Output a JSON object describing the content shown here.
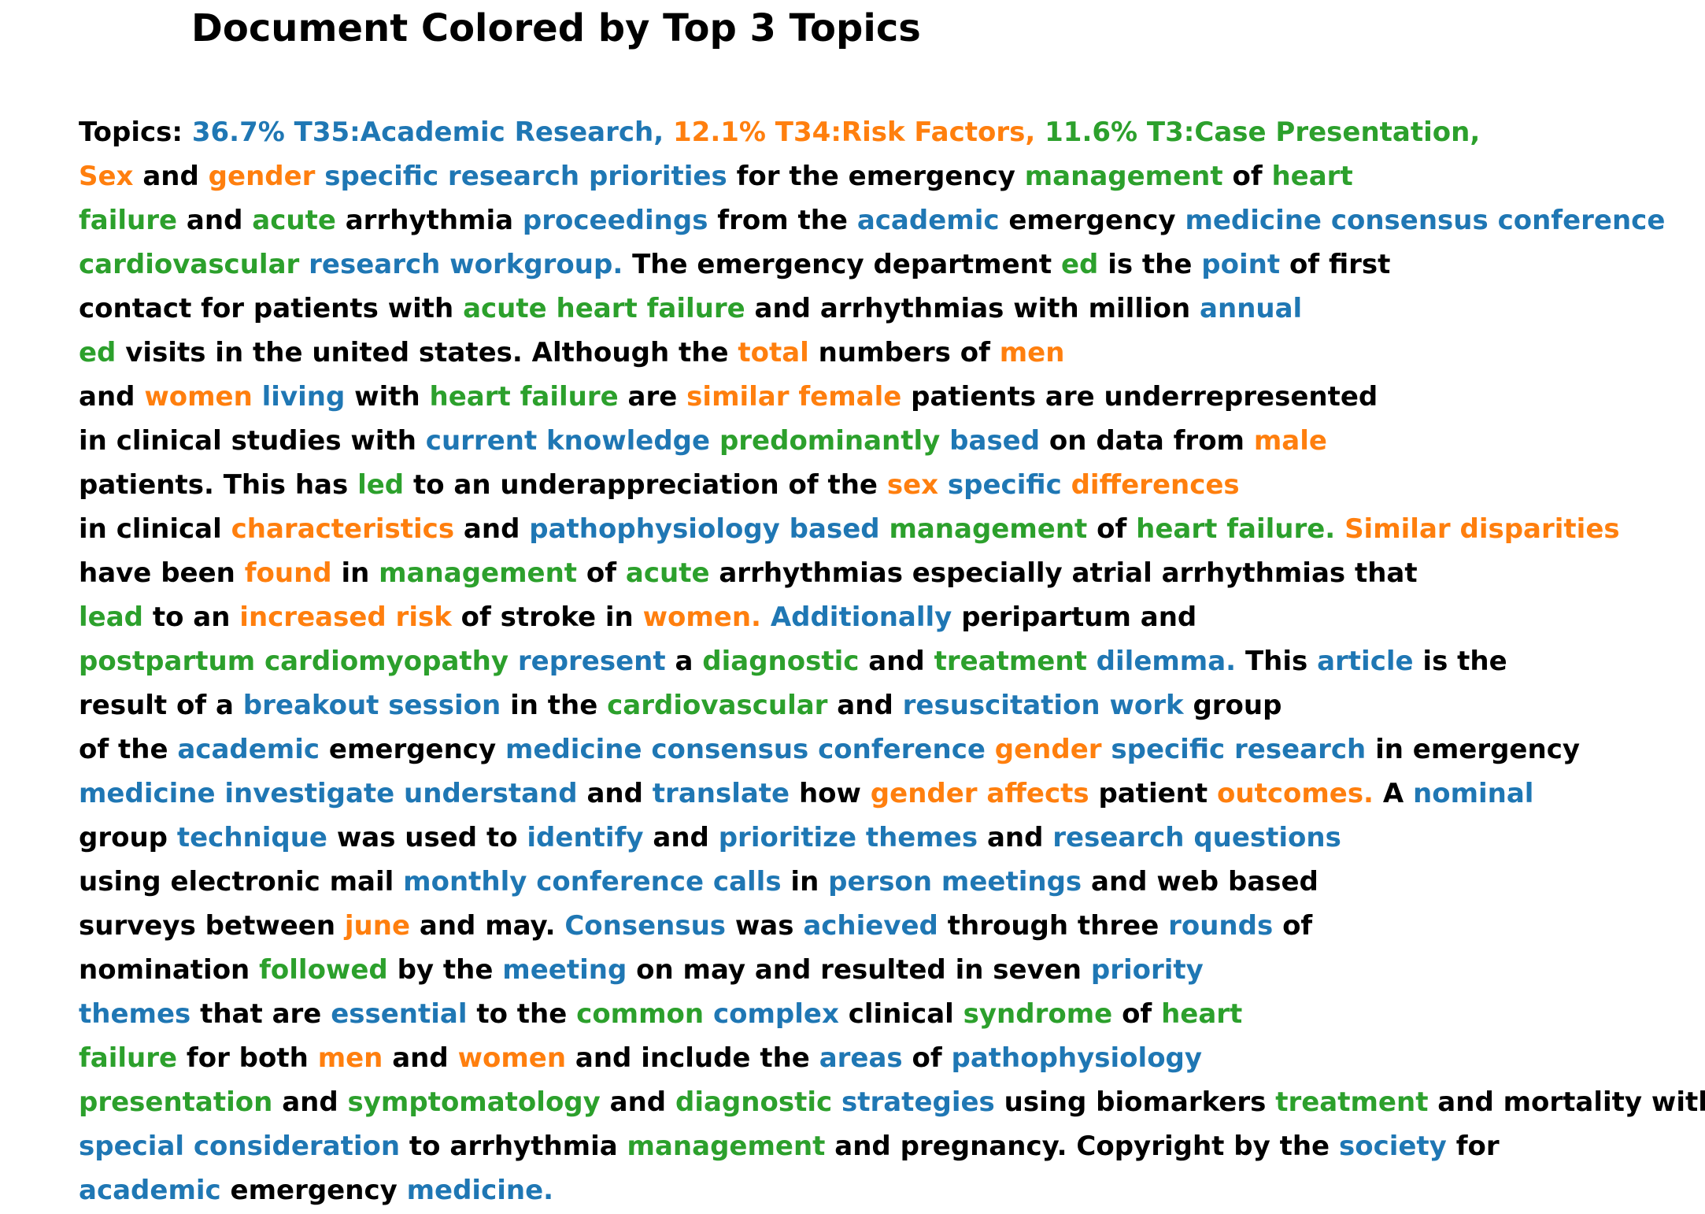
{
  "title": "Document Colored by Top 3 Topics",
  "colors": {
    "k": "#000000",
    "t0": "#1f77b4",
    "t1": "#ff7f0e",
    "t2": "#2ca02c"
  },
  "topics": [
    {
      "label": "36.7% T35:Academic Research,",
      "color": "t0"
    },
    {
      "label": "12.1% T34:Risk Factors,",
      "color": "t1"
    },
    {
      "label": "11.6% T3:Case Presentation,",
      "color": "t2"
    }
  ],
  "lines": [
    [
      [
        "Topics:",
        "k"
      ],
      [
        "36.7% T35:Academic Research,",
        "t0"
      ],
      [
        "12.1% T34:Risk Factors,",
        "t1"
      ],
      [
        "11.6% T3:Case Presentation,",
        "t2"
      ]
    ],
    [
      [
        "Sex",
        "t1"
      ],
      [
        "and",
        "k"
      ],
      [
        "gender",
        "t1"
      ],
      [
        "specific research priorities",
        "t0"
      ],
      [
        "for the emergency",
        "k"
      ],
      [
        "management",
        "t2"
      ],
      [
        "of",
        "k"
      ],
      [
        "heart",
        "t2"
      ]
    ],
    [
      [
        "failure",
        "t2"
      ],
      [
        "and",
        "k"
      ],
      [
        "acute",
        "t2"
      ],
      [
        "arrhythmia",
        "k"
      ],
      [
        "proceedings",
        "t0"
      ],
      [
        "from the",
        "k"
      ],
      [
        "academic",
        "t0"
      ],
      [
        "emergency",
        "k"
      ],
      [
        "medicine consensus conference",
        "t0"
      ]
    ],
    [
      [
        "cardiovascular",
        "t2"
      ],
      [
        "research workgroup.",
        "t0"
      ],
      [
        "The emergency department",
        "k"
      ],
      [
        "ed",
        "t2"
      ],
      [
        "is the",
        "k"
      ],
      [
        "point",
        "t0"
      ],
      [
        "of first",
        "k"
      ]
    ],
    [
      [
        "contact for patients with",
        "k"
      ],
      [
        "acute heart failure",
        "t2"
      ],
      [
        "and arrhythmias with million",
        "k"
      ],
      [
        "annual",
        "t0"
      ]
    ],
    [
      [
        "ed",
        "t2"
      ],
      [
        "visits in the united states. Although the",
        "k"
      ],
      [
        "total",
        "t1"
      ],
      [
        "numbers of",
        "k"
      ],
      [
        "men",
        "t1"
      ]
    ],
    [
      [
        "and",
        "k"
      ],
      [
        "women",
        "t1"
      ],
      [
        "living",
        "t0"
      ],
      [
        "with",
        "k"
      ],
      [
        "heart failure",
        "t2"
      ],
      [
        "are",
        "k"
      ],
      [
        "similar female",
        "t1"
      ],
      [
        "patients are underrepresented",
        "k"
      ]
    ],
    [
      [
        "in clinical studies with",
        "k"
      ],
      [
        "current knowledge",
        "t0"
      ],
      [
        "predominantly",
        "t2"
      ],
      [
        "based",
        "t0"
      ],
      [
        "on data from",
        "k"
      ],
      [
        "male",
        "t1"
      ]
    ],
    [
      [
        "patients. This has",
        "k"
      ],
      [
        "led",
        "t2"
      ],
      [
        "to an underappreciation of the",
        "k"
      ],
      [
        "sex",
        "t1"
      ],
      [
        "specific",
        "t0"
      ],
      [
        "differences",
        "t1"
      ]
    ],
    [
      [
        "in clinical",
        "k"
      ],
      [
        "characteristics",
        "t1"
      ],
      [
        "and",
        "k"
      ],
      [
        "pathophysiology based",
        "t0"
      ],
      [
        "management",
        "t2"
      ],
      [
        "of",
        "k"
      ],
      [
        "heart failure.",
        "t2"
      ],
      [
        "Similar disparities",
        "t1"
      ]
    ],
    [
      [
        "have been",
        "k"
      ],
      [
        "found",
        "t1"
      ],
      [
        "in",
        "k"
      ],
      [
        "management",
        "t2"
      ],
      [
        "of",
        "k"
      ],
      [
        "acute",
        "t2"
      ],
      [
        "arrhythmias especially atrial arrhythmias that",
        "k"
      ]
    ],
    [
      [
        "lead",
        "t2"
      ],
      [
        "to an",
        "k"
      ],
      [
        "increased risk",
        "t1"
      ],
      [
        "of stroke in",
        "k"
      ],
      [
        "women.",
        "t1"
      ],
      [
        "Additionally",
        "t0"
      ],
      [
        "peripartum and",
        "k"
      ]
    ],
    [
      [
        "postpartum cardiomyopathy",
        "t2"
      ],
      [
        "represent",
        "t0"
      ],
      [
        "a",
        "k"
      ],
      [
        "diagnostic",
        "t2"
      ],
      [
        "and",
        "k"
      ],
      [
        "treatment",
        "t2"
      ],
      [
        "dilemma.",
        "t0"
      ],
      [
        "This",
        "k"
      ],
      [
        "article",
        "t0"
      ],
      [
        "is the",
        "k"
      ]
    ],
    [
      [
        "result of a",
        "k"
      ],
      [
        "breakout session",
        "t0"
      ],
      [
        "in the",
        "k"
      ],
      [
        "cardiovascular",
        "t2"
      ],
      [
        "and",
        "k"
      ],
      [
        "resuscitation work",
        "t0"
      ],
      [
        "group",
        "k"
      ]
    ],
    [
      [
        "of the",
        "k"
      ],
      [
        "academic",
        "t0"
      ],
      [
        "emergency",
        "k"
      ],
      [
        "medicine consensus conference",
        "t0"
      ],
      [
        "gender",
        "t1"
      ],
      [
        "specific research",
        "t0"
      ],
      [
        "in emergency",
        "k"
      ]
    ],
    [
      [
        "medicine investigate understand",
        "t0"
      ],
      [
        "and",
        "k"
      ],
      [
        "translate",
        "t0"
      ],
      [
        "how",
        "k"
      ],
      [
        "gender affects",
        "t1"
      ],
      [
        "patient",
        "k"
      ],
      [
        "outcomes.",
        "t1"
      ],
      [
        "A",
        "k"
      ],
      [
        "nominal",
        "t0"
      ]
    ],
    [
      [
        "group",
        "k"
      ],
      [
        "technique",
        "t0"
      ],
      [
        "was used to",
        "k"
      ],
      [
        "identify",
        "t0"
      ],
      [
        "and",
        "k"
      ],
      [
        "prioritize themes",
        "t0"
      ],
      [
        "and",
        "k"
      ],
      [
        "research questions",
        "t0"
      ]
    ],
    [
      [
        "using electronic mail",
        "k"
      ],
      [
        "monthly conference calls",
        "t0"
      ],
      [
        "in",
        "k"
      ],
      [
        "person meetings",
        "t0"
      ],
      [
        "and web based",
        "k"
      ]
    ],
    [
      [
        "surveys between",
        "k"
      ],
      [
        "june",
        "t1"
      ],
      [
        "and may.",
        "k"
      ],
      [
        "Consensus",
        "t0"
      ],
      [
        "was",
        "k"
      ],
      [
        "achieved",
        "t0"
      ],
      [
        "through three",
        "k"
      ],
      [
        "rounds",
        "t0"
      ],
      [
        "of",
        "k"
      ]
    ],
    [
      [
        "nomination",
        "k"
      ],
      [
        "followed",
        "t2"
      ],
      [
        "by the",
        "k"
      ],
      [
        "meeting",
        "t0"
      ],
      [
        "on may and resulted in seven",
        "k"
      ],
      [
        "priority",
        "t0"
      ]
    ],
    [
      [
        "themes",
        "t0"
      ],
      [
        "that are",
        "k"
      ],
      [
        "essential",
        "t0"
      ],
      [
        "to the",
        "k"
      ],
      [
        "common",
        "t2"
      ],
      [
        "complex",
        "t0"
      ],
      [
        "clinical",
        "k"
      ],
      [
        "syndrome",
        "t2"
      ],
      [
        "of",
        "k"
      ],
      [
        "heart",
        "t2"
      ]
    ],
    [
      [
        "failure",
        "t2"
      ],
      [
        "for both",
        "k"
      ],
      [
        "men",
        "t1"
      ],
      [
        "and",
        "k"
      ],
      [
        "women",
        "t1"
      ],
      [
        "and include the",
        "k"
      ],
      [
        "areas",
        "t0"
      ],
      [
        "of",
        "k"
      ],
      [
        "pathophysiology",
        "t0"
      ]
    ],
    [
      [
        "presentation",
        "t2"
      ],
      [
        "and",
        "k"
      ],
      [
        "symptomatology",
        "t2"
      ],
      [
        "and",
        "k"
      ],
      [
        "diagnostic",
        "t2"
      ],
      [
        "strategies",
        "t0"
      ],
      [
        "using biomarkers",
        "k"
      ],
      [
        "treatment",
        "t2"
      ],
      [
        "and mortality with",
        "k"
      ]
    ],
    [
      [
        "special consideration",
        "t0"
      ],
      [
        "to arrhythmia",
        "k"
      ],
      [
        "management",
        "t2"
      ],
      [
        "and pregnancy. Copyright by the",
        "k"
      ],
      [
        "society",
        "t0"
      ],
      [
        "for",
        "k"
      ]
    ],
    [
      [
        "academic",
        "t0"
      ],
      [
        "emergency",
        "k"
      ],
      [
        "medicine.",
        "t0"
      ]
    ]
  ]
}
